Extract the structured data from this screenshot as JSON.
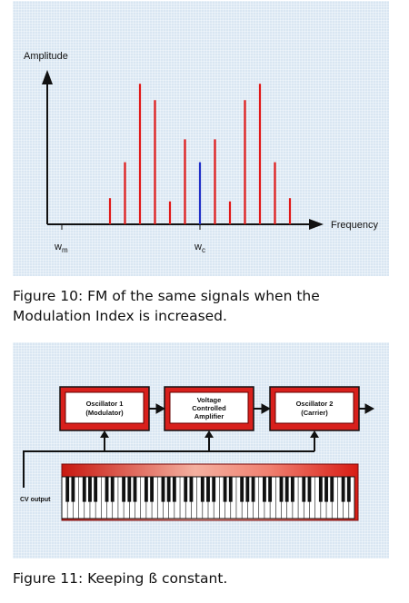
{
  "figure10": {
    "y_axis_label": "Amplitude",
    "x_axis_label": "Frequency",
    "marker_modulator": "w",
    "marker_modulator_sub": "m",
    "marker_carrier": "w",
    "marker_carrier_sub": "c",
    "spectrum": {
      "type": "bar",
      "carrier_color": "#2030c8",
      "sideband_color": "#e01818",
      "lines": [
        {
          "x": -6,
          "amplitude": 0.16,
          "kind": "sideband"
        },
        {
          "x": -5,
          "amplitude": 0.38,
          "kind": "sideband"
        },
        {
          "x": -4,
          "amplitude": 0.86,
          "kind": "sideband"
        },
        {
          "x": -3,
          "amplitude": 0.76,
          "kind": "sideband"
        },
        {
          "x": -2,
          "amplitude": 0.14,
          "kind": "sideband"
        },
        {
          "x": -1,
          "amplitude": 0.52,
          "kind": "sideband"
        },
        {
          "x": 0,
          "amplitude": 0.38,
          "kind": "carrier"
        },
        {
          "x": 1,
          "amplitude": 0.52,
          "kind": "sideband"
        },
        {
          "x": 2,
          "amplitude": 0.14,
          "kind": "sideband"
        },
        {
          "x": 3,
          "amplitude": 0.76,
          "kind": "sideband"
        },
        {
          "x": 4,
          "amplitude": 0.86,
          "kind": "sideband"
        },
        {
          "x": 5,
          "amplitude": 0.38,
          "kind": "sideband"
        },
        {
          "x": 6,
          "amplitude": 0.16,
          "kind": "sideband"
        }
      ]
    },
    "caption": "Figure 10: FM of the same signals when the Modulation Index is increased."
  },
  "figure11": {
    "oscillator1_line1": "Oscillator 1",
    "oscillator1_line2": "(Modulator)",
    "vca_line1": "Voltage",
    "vca_line2": "Controlled",
    "vca_line3": "Amplifier",
    "oscillator2_line1": "Oscillator 2",
    "oscillator2_line2": "(Carrier)",
    "cv_label": "CV output",
    "block_color": "#d8201c",
    "caption": "Figure 11: Keeping ß constant."
  }
}
